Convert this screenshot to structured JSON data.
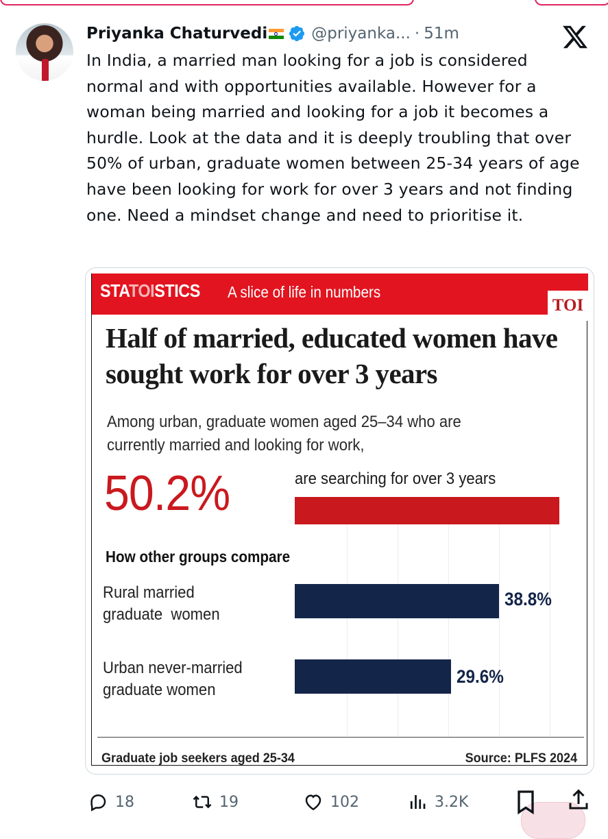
{
  "tweet": {
    "author_name": "Priyanka Chaturvedi",
    "handle": "@priyanka...",
    "separator": "·",
    "time": "51m",
    "text": "In India, a married man looking for a job is considered normal and with opportunities available. However for a woman being married and looking for a job it becomes a hurdle. Look at the data and it is deeply troubling that over 50% of urban, graduate women between 25-34 years of age have been looking for work for over 3 years and not finding one. Need a mindset change and need to prioritise it."
  },
  "infographic": {
    "brand_prefix": "STA",
    "brand_mid": "TOI",
    "brand_suffix": "STICS",
    "tagline": "A slice of life in numbers",
    "publisher": "TOI",
    "headline": "Half of married, educated women have sought work for over 3 years",
    "lead": "Among urban, graduate women aged 25–34 who are currently married and looking for work,",
    "big_stat": "50.2%",
    "big_stat_caption": "are searching for over 3 years",
    "compare_title": "How other groups compare",
    "footer_left": "Graduate job seekers aged 25-34",
    "footer_right": "Source: PLFS 2024"
  },
  "chart_data": {
    "type": "bar",
    "categories": [
      "Urban married graduate women",
      "Rural married graduate women",
      "Urban never-married graduate women"
    ],
    "display_labels": [
      "",
      "Rural married\ngraduate  women",
      "Urban never-married\ngraduate women"
    ],
    "values": [
      50.2,
      38.8,
      29.6
    ],
    "value_labels": [
      "50.2%",
      "38.8%",
      "29.6%"
    ],
    "colors": [
      "#c9191e",
      "#14254a",
      "#14254a"
    ],
    "orientation": "horizontal",
    "grid": true
  },
  "actions": {
    "replies": "18",
    "retweets": "19",
    "likes": "102",
    "views": "3.2K"
  },
  "colors": {
    "toi_red": "#e2141f",
    "stat_red": "#c9191e",
    "navy": "#14254a",
    "muted": "#536471"
  }
}
